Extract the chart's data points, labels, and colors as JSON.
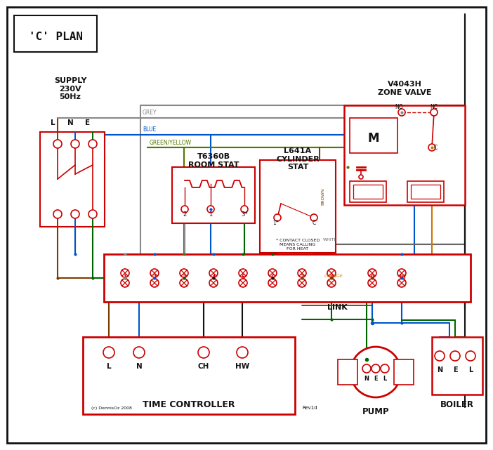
{
  "title": "'C' PLAN",
  "bg": "#ffffff",
  "red": "#cc0000",
  "grey": "#888888",
  "blue": "#0055cc",
  "green": "#006600",
  "gy": "#557700",
  "brown": "#7a3b00",
  "black": "#111111",
  "white_wire": "#666666",
  "orange": "#cc7700",
  "supply_text": "SUPPLY\n230V\n50Hz",
  "zone_valve_title": "V4043H\nZONE VALVE",
  "room_stat_title": "T6360B\nROOM STAT",
  "cyl_stat_title": "L641A\nCYLINDER\nSTAT",
  "contact_note": "* CONTACT CLOSED\nMEANS CALLING\nFOR HEAT",
  "tc_title": "TIME CONTROLLER",
  "pump_title": "PUMP",
  "boiler_title": "BOILER",
  "link_label": "LINK",
  "copyright": "(c) DennisOz 2008",
  "rev": "Rev1d"
}
